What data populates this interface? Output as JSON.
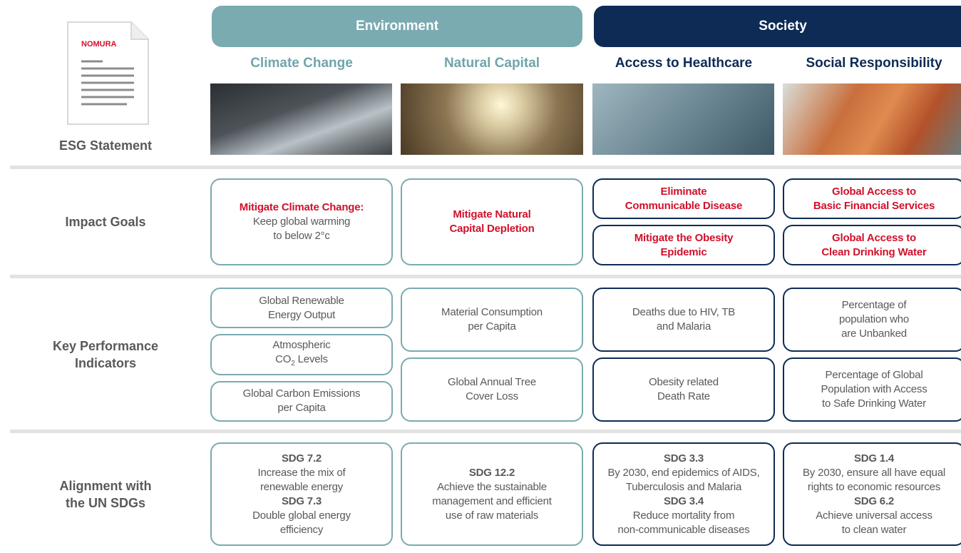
{
  "logo": "NOMURA",
  "esg_statement": "ESG Statement",
  "pillars": [
    "Environment",
    "Society"
  ],
  "themes": [
    "Climate Change",
    "Natural Capital",
    "Access to Healthcare",
    "Social Responsibility"
  ],
  "row_labels": [
    [
      "Impact Goals"
    ],
    [
      "Key Performance",
      "Indicators"
    ],
    [
      "Alignment with",
      "the UN SDGs"
    ]
  ],
  "impact_goals": [
    [
      {
        "headline": [
          "Mitigate Climate Change:"
        ],
        "text": [
          "Keep global warming",
          "to below 2°c"
        ]
      }
    ],
    [
      {
        "headline": [
          "Mitigate Natural",
          "Capital Depletion"
        ]
      }
    ],
    [
      {
        "headline": [
          "Eliminate",
          "Communicable Disease"
        ]
      },
      {
        "headline": [
          "Mitigate the Obesity",
          "Epidemic"
        ]
      }
    ],
    [
      {
        "headline": [
          "Global Access to",
          "Basic Financial Services"
        ]
      },
      {
        "headline": [
          "Global Access to",
          "Clean Drinking Water"
        ]
      }
    ]
  ],
  "kpis": [
    [
      [
        "Global Renewable",
        "Energy Output"
      ],
      [
        "Atmospheric",
        {
          "text": "CO",
          "sub": "2",
          "after": "Levels"
        }
      ],
      [
        "Global Carbon Emissions",
        "per Capita"
      ]
    ],
    [
      [
        "Material Consumption",
        "per Capita"
      ],
      [
        "Global Annual Tree",
        "Cover Loss"
      ]
    ],
    [
      [
        "Deaths due to HIV, TB",
        "and Malaria"
      ],
      [
        "Obesity related",
        "Death Rate"
      ]
    ],
    [
      [
        "Percentage of",
        "population who",
        "are Unbanked"
      ],
      [
        "Percentage of Global",
        "Population with Access",
        "to Safe Drinking Water"
      ]
    ]
  ],
  "sdgs": [
    [
      {
        "code": "SDG 7.2",
        "text": [
          "Increase the mix of",
          "renewable energy"
        ]
      },
      {
        "code": "SDG 7.3",
        "text": [
          "Double global energy",
          "efficiency"
        ]
      }
    ],
    [
      {
        "code": "SDG 12.2",
        "text": [
          "Achieve the sustainable",
          "management and efficient",
          "use of raw materials"
        ]
      }
    ],
    [
      {
        "code": "SDG 3.3",
        "text": [
          "By 2030, end epidemics of AIDS,",
          "Tuberculosis and Malaria"
        ]
      },
      {
        "code": "SDG 3.4",
        "text": [
          "Reduce mortality from",
          "non-communicable diseases"
        ]
      }
    ],
    [
      {
        "code": "SDG 1.4",
        "text": [
          "By 2030, ensure all have equal",
          "rights to economic resources"
        ]
      },
      {
        "code": "SDG 6.2",
        "text": [
          "Achieve universal access",
          "to clean water"
        ]
      }
    ]
  ]
}
